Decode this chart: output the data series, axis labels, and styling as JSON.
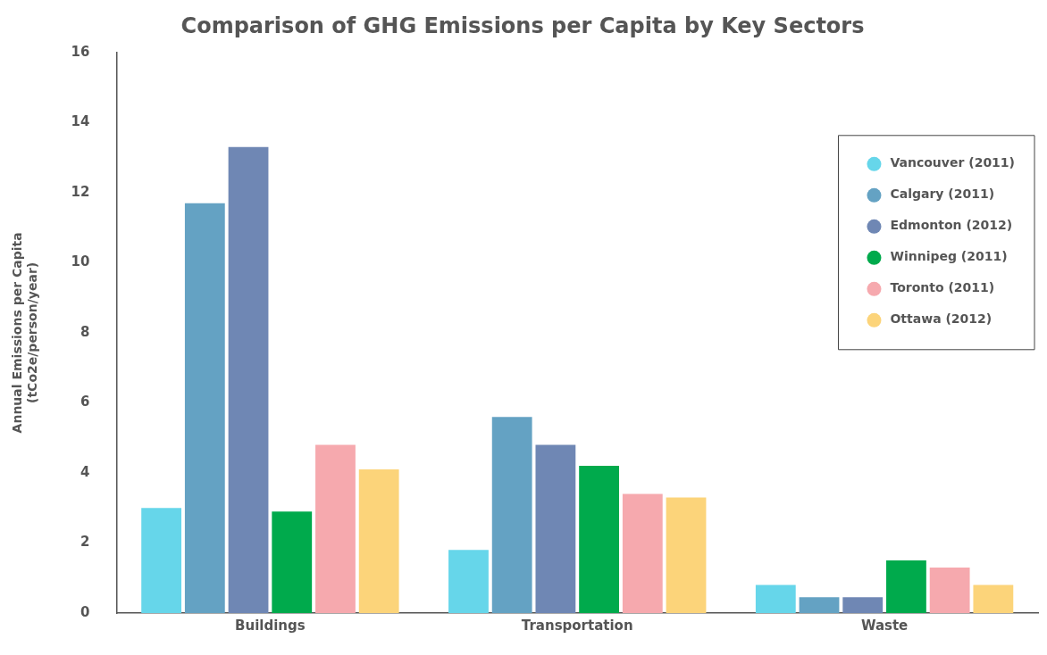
{
  "chart_data": {
    "type": "bar",
    "title": "Comparison of GHG Emissions per Capita by Key Sectors",
    "ylabel": "Annual Emissions per Capita\n(tCo2e/person/year)",
    "categories": [
      "Buildings",
      "Transportation",
      "Waste"
    ],
    "series": [
      {
        "name": "Vancouver (2011)",
        "color": "#66d6ea",
        "values": [
          3.0,
          1.8,
          0.8
        ]
      },
      {
        "name": "Calgary (2011)",
        "color": "#64a2c3",
        "values": [
          11.7,
          5.6,
          0.45
        ]
      },
      {
        "name": "Edmonton (2012)",
        "color": "#6f87b4",
        "values": [
          13.3,
          4.8,
          0.45
        ]
      },
      {
        "name": "Winnipeg (2011)",
        "color": "#00aa4c",
        "values": [
          2.9,
          4.2,
          1.5
        ]
      },
      {
        "name": "Toronto (2011)",
        "color": "#f6a9ae",
        "values": [
          4.8,
          3.4,
          1.3
        ]
      },
      {
        "name": "Ottawa (2012)",
        "color": "#fcd47a",
        "values": [
          4.1,
          3.3,
          0.8
        ]
      }
    ],
    "ylim": [
      0,
      16
    ],
    "yticks": [
      0,
      2,
      4,
      6,
      8,
      10,
      12,
      14,
      16
    ],
    "grid": false,
    "legend": "top right"
  }
}
